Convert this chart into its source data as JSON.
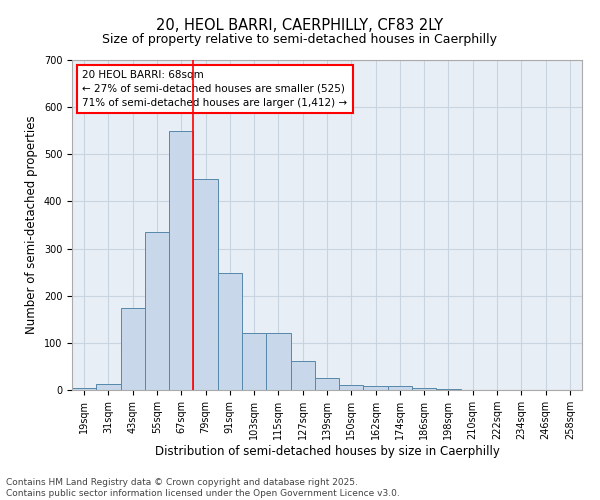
{
  "title_line1": "20, HEOL BARRI, CAERPHILLY, CF83 2LY",
  "title_line2": "Size of property relative to semi-detached houses in Caerphilly",
  "xlabel": "Distribution of semi-detached houses by size in Caerphilly",
  "ylabel": "Number of semi-detached properties",
  "bar_labels": [
    "19sqm",
    "31sqm",
    "43sqm",
    "55sqm",
    "67sqm",
    "79sqm",
    "91sqm",
    "103sqm",
    "115sqm",
    "127sqm",
    "139sqm",
    "150sqm",
    "162sqm",
    "174sqm",
    "186sqm",
    "198sqm",
    "210sqm",
    "222sqm",
    "234sqm",
    "246sqm",
    "258sqm"
  ],
  "bar_values": [
    5,
    12,
    175,
    336,
    549,
    448,
    248,
    120,
    120,
    62,
    26,
    11,
    9,
    8,
    5,
    2,
    1,
    0,
    0,
    0,
    0
  ],
  "bar_color": "#c8d8ea",
  "bar_edge_color": "#5588aa",
  "grid_color": "#c8d4e0",
  "bg_color": "#e8eef5",
  "annotation_text": "20 HEOL BARRI: 68sqm\n← 27% of semi-detached houses are smaller (525)\n71% of semi-detached houses are larger (1,412) →",
  "vline_x_index": 4,
  "ylim": [
    0,
    700
  ],
  "yticks": [
    0,
    100,
    200,
    300,
    400,
    500,
    600,
    700
  ],
  "footer_line1": "Contains HM Land Registry data © Crown copyright and database right 2025.",
  "footer_line2": "Contains public sector information licensed under the Open Government Licence v3.0.",
  "title_fontsize": 10.5,
  "subtitle_fontsize": 9,
  "axis_label_fontsize": 8.5,
  "tick_fontsize": 7,
  "annotation_fontsize": 7.5,
  "footer_fontsize": 6.5
}
